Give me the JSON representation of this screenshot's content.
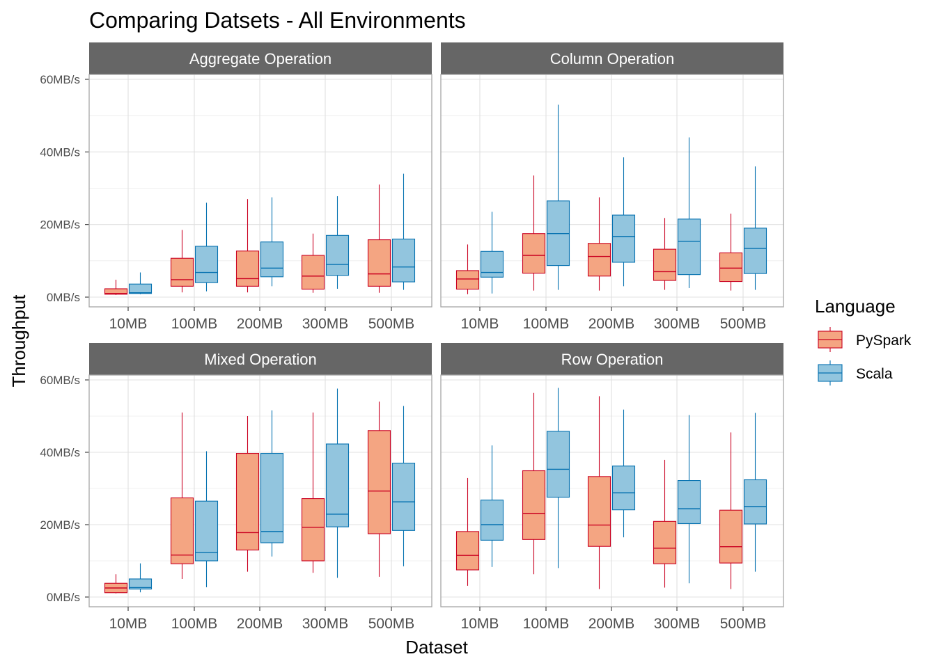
{
  "chart_data": {
    "type": "boxplot",
    "title": "Comparing Datsets - All Environments",
    "xlabel": "Dataset",
    "ylabel": "Throughput",
    "ylim": [
      0,
      60
    ],
    "y_ticks": [
      "0MB/s",
      "20MB/s",
      "40MB/s",
      "60MB/s"
    ],
    "y_tick_values": [
      0,
      20,
      40,
      60
    ],
    "categories": [
      "10MB",
      "100MB",
      "200MB",
      "300MB",
      "500MB"
    ],
    "grid": true,
    "legend": {
      "title": "Language",
      "position": "right",
      "items": [
        {
          "name": "PySpark",
          "fill": "#F4A582",
          "stroke": "#CA0020"
        },
        {
          "name": "Scala",
          "fill": "#92C5DE",
          "stroke": "#0571B0"
        }
      ]
    },
    "panels": [
      {
        "name": "Aggregate Operation",
        "series": [
          {
            "name": "PySpark",
            "boxes": [
              {
                "min": 0.6,
                "q1": 0.8,
                "median": 1.0,
                "q3": 2.3,
                "max": 4.8
              },
              {
                "min": 1.3,
                "q1": 3.0,
                "median": 4.8,
                "q3": 10.7,
                "max": 18.5
              },
              {
                "min": 1.3,
                "q1": 3.0,
                "median": 5.1,
                "q3": 12.7,
                "max": 27.0
              },
              {
                "min": 1.2,
                "q1": 2.2,
                "median": 5.8,
                "q3": 11.5,
                "max": 17.5
              },
              {
                "min": 1.2,
                "q1": 3.0,
                "median": 6.4,
                "q3": 15.8,
                "max": 31.0
              }
            ]
          },
          {
            "name": "Scala",
            "boxes": [
              {
                "min": 0.8,
                "q1": 1.0,
                "median": 1.2,
                "q3": 3.6,
                "max": 6.8
              },
              {
                "min": 1.6,
                "q1": 4.0,
                "median": 6.8,
                "q3": 14.0,
                "max": 26.0
              },
              {
                "min": 3.0,
                "q1": 5.6,
                "median": 8.0,
                "q3": 15.2,
                "max": 27.5
              },
              {
                "min": 2.3,
                "q1": 6.0,
                "median": 9.0,
                "q3": 17.0,
                "max": 27.8
              },
              {
                "min": 2.0,
                "q1": 4.2,
                "median": 8.3,
                "q3": 16.0,
                "max": 34.0
              }
            ]
          }
        ]
      },
      {
        "name": "Column Operation",
        "series": [
          {
            "name": "PySpark",
            "boxes": [
              {
                "min": 0.8,
                "q1": 2.2,
                "median": 5.0,
                "q3": 7.3,
                "max": 14.5
              },
              {
                "min": 1.8,
                "q1": 6.6,
                "median": 11.5,
                "q3": 17.5,
                "max": 33.5
              },
              {
                "min": 1.8,
                "q1": 5.8,
                "median": 11.2,
                "q3": 14.8,
                "max": 27.5
              },
              {
                "min": 2.0,
                "q1": 4.6,
                "median": 7.0,
                "q3": 13.2,
                "max": 21.8
              },
              {
                "min": 1.8,
                "q1": 4.3,
                "median": 8.0,
                "q3": 12.2,
                "max": 23.0
              }
            ]
          },
          {
            "name": "Scala",
            "boxes": [
              {
                "min": 1.0,
                "q1": 5.5,
                "median": 6.8,
                "q3": 12.6,
                "max": 23.5
              },
              {
                "min": 2.0,
                "q1": 8.7,
                "median": 17.5,
                "q3": 26.5,
                "max": 53.0
              },
              {
                "min": 3.0,
                "q1": 9.6,
                "median": 16.7,
                "q3": 22.6,
                "max": 38.5
              },
              {
                "min": 2.5,
                "q1": 6.2,
                "median": 15.4,
                "q3": 21.5,
                "max": 44.0
              },
              {
                "min": 2.0,
                "q1": 6.5,
                "median": 13.4,
                "q3": 19.0,
                "max": 36.0
              }
            ]
          }
        ]
      },
      {
        "name": "Mixed Operation",
        "series": [
          {
            "name": "PySpark",
            "boxes": [
              {
                "min": 1.0,
                "q1": 1.2,
                "median": 2.5,
                "q3": 3.8,
                "max": 6.3
              },
              {
                "min": 5.0,
                "q1": 9.2,
                "median": 11.6,
                "q3": 27.4,
                "max": 51.0
              },
              {
                "min": 7.0,
                "q1": 13.0,
                "median": 17.8,
                "q3": 39.7,
                "max": 50.0
              },
              {
                "min": 6.7,
                "q1": 10.0,
                "median": 19.3,
                "q3": 27.2,
                "max": 51.0
              },
              {
                "min": 5.6,
                "q1": 17.5,
                "median": 29.3,
                "q3": 46.0,
                "max": 54.0
              }
            ]
          },
          {
            "name": "Scala",
            "boxes": [
              {
                "min": 1.3,
                "q1": 2.2,
                "median": 2.6,
                "q3": 5.0,
                "max": 9.3
              },
              {
                "min": 2.7,
                "q1": 10.0,
                "median": 12.3,
                "q3": 26.5,
                "max": 40.3
              },
              {
                "min": 11.2,
                "q1": 15.0,
                "median": 18.1,
                "q3": 39.7,
                "max": 51.6
              },
              {
                "min": 5.3,
                "q1": 19.4,
                "median": 22.9,
                "q3": 42.3,
                "max": 57.6
              },
              {
                "min": 8.5,
                "q1": 18.4,
                "median": 26.3,
                "q3": 37.0,
                "max": 52.8
              }
            ]
          }
        ]
      },
      {
        "name": "Row Operation",
        "series": [
          {
            "name": "PySpark",
            "boxes": [
              {
                "min": 3.1,
                "q1": 7.5,
                "median": 11.5,
                "q3": 18.1,
                "max": 32.9
              },
              {
                "min": 6.3,
                "q1": 15.9,
                "median": 23.1,
                "q3": 34.9,
                "max": 56.4
              },
              {
                "min": 2.2,
                "q1": 14.0,
                "median": 19.9,
                "q3": 33.3,
                "max": 55.5
              },
              {
                "min": 2.6,
                "q1": 9.2,
                "median": 13.5,
                "q3": 20.9,
                "max": 37.9
              },
              {
                "min": 2.2,
                "q1": 9.4,
                "median": 13.9,
                "q3": 24.0,
                "max": 45.5
              }
            ]
          },
          {
            "name": "Scala",
            "boxes": [
              {
                "min": 8.3,
                "q1": 15.7,
                "median": 20.0,
                "q3": 26.8,
                "max": 41.9
              },
              {
                "min": 8.0,
                "q1": 27.6,
                "median": 35.3,
                "q3": 45.8,
                "max": 57.8
              },
              {
                "min": 16.5,
                "q1": 24.1,
                "median": 28.8,
                "q3": 36.2,
                "max": 51.8
              },
              {
                "min": 3.8,
                "q1": 20.3,
                "median": 24.4,
                "q3": 32.2,
                "max": 50.3
              },
              {
                "min": 7.0,
                "q1": 20.2,
                "median": 25.0,
                "q3": 32.4,
                "max": 50.9
              }
            ]
          }
        ]
      }
    ]
  }
}
